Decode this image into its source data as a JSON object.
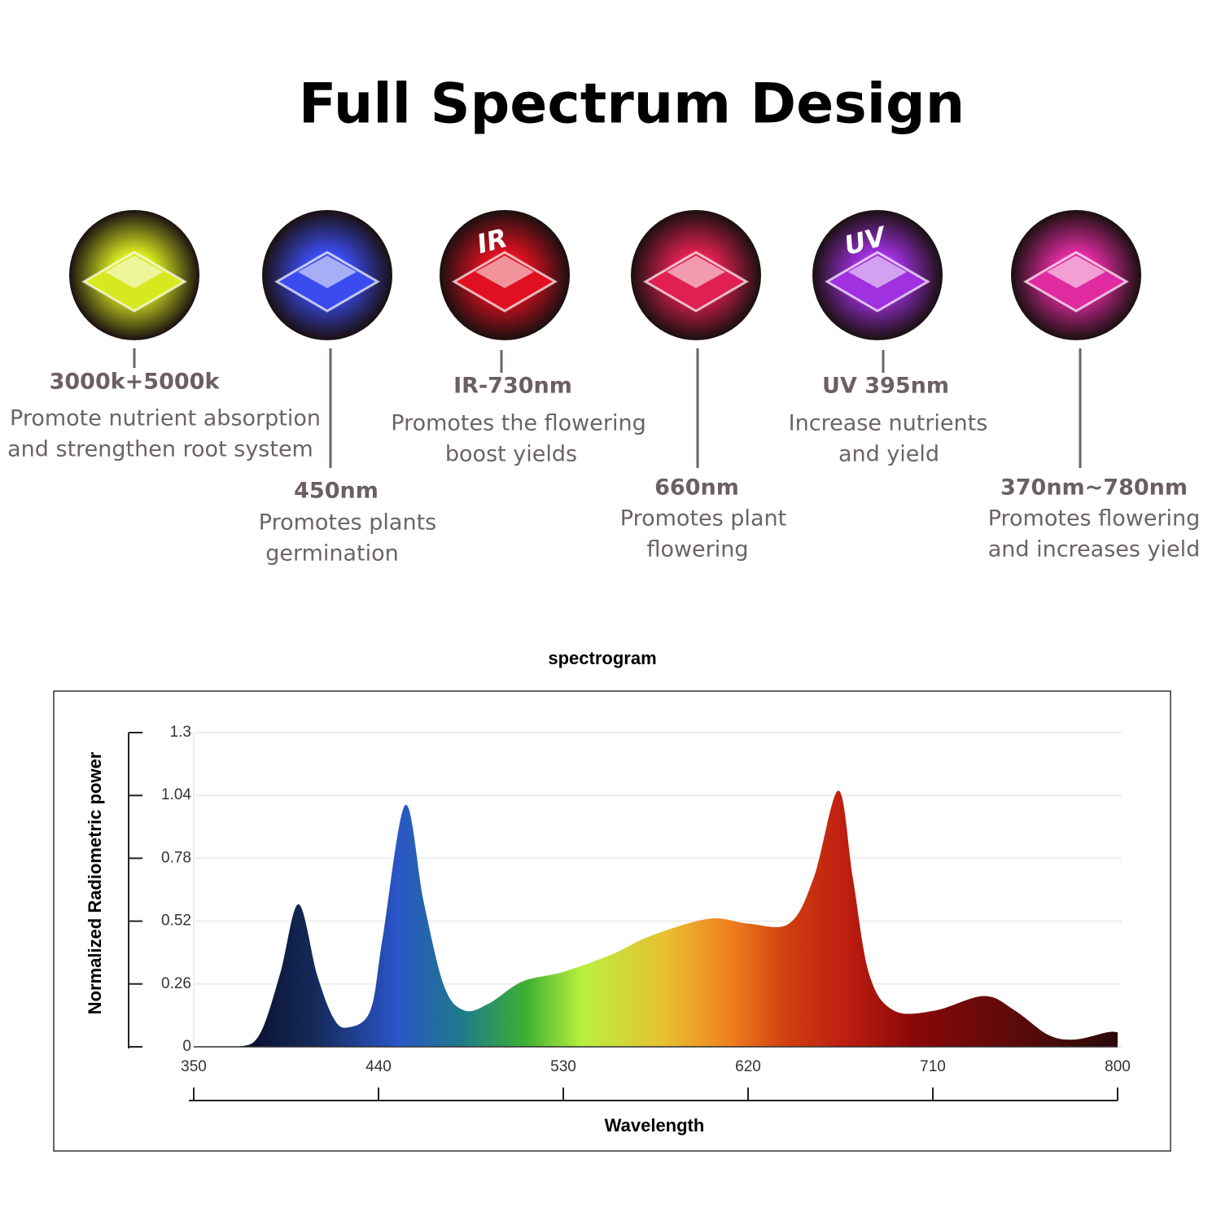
{
  "header": {
    "title": "Full Spectrum Design"
  },
  "items": [
    {
      "label": "3000k+5000k",
      "desc": [
        "Promote nutrient absorption",
        "and strengthen root system"
      ],
      "color": "#d8e820"
    },
    {
      "label": "450nm",
      "desc": [
        "Promotes plants",
        "germination"
      ],
      "color": "#3a4cf0"
    },
    {
      "label": "IR-730nm",
      "desc": [
        "Promotes the flowering",
        "boost yields"
      ],
      "color": "#e01020",
      "icon_text": "IR"
    },
    {
      "label": "660nm",
      "desc": [
        "Promotes plant",
        "flowering"
      ],
      "color": "#e02050"
    },
    {
      "label": "UV 395nm",
      "desc": [
        "Increase nutrients",
        "and yield"
      ],
      "color": "#a030e0",
      "icon_text": "UV"
    },
    {
      "label": "370nm~780nm",
      "desc": [
        "Promotes flowering",
        "and increases yield"
      ],
      "color": "#e02aa0"
    }
  ],
  "chart_data": {
    "type": "area",
    "title": "spectrogram",
    "x_label": "Wavelength",
    "y_label": "Normalized Radiometric power",
    "x": [
      350,
      371,
      382,
      392,
      401,
      410,
      418,
      425,
      436,
      442,
      453,
      462,
      472,
      482,
      494,
      510,
      530,
      553,
      573,
      601,
      620,
      640,
      652,
      664,
      671,
      679,
      691,
      711,
      735,
      750,
      766,
      779,
      795,
      800
    ],
    "values": [
      0,
      0,
      0.05,
      0.3,
      0.59,
      0.3,
      0.12,
      0.08,
      0.15,
      0.45,
      1.0,
      0.6,
      0.25,
      0.15,
      0.18,
      0.27,
      0.31,
      0.38,
      0.46,
      0.53,
      0.51,
      0.51,
      0.7,
      1.06,
      0.7,
      0.3,
      0.15,
      0.15,
      0.21,
      0.15,
      0.05,
      0.03,
      0.06,
      0.06
    ],
    "xlim": [
      350,
      800
    ],
    "xticks": [
      350,
      440,
      530,
      620,
      710,
      800
    ],
    "ylim": [
      0,
      1.3
    ],
    "yticks": [
      0,
      0.26,
      0.52,
      0.78,
      1.04,
      1.3
    ],
    "grid": true
  }
}
